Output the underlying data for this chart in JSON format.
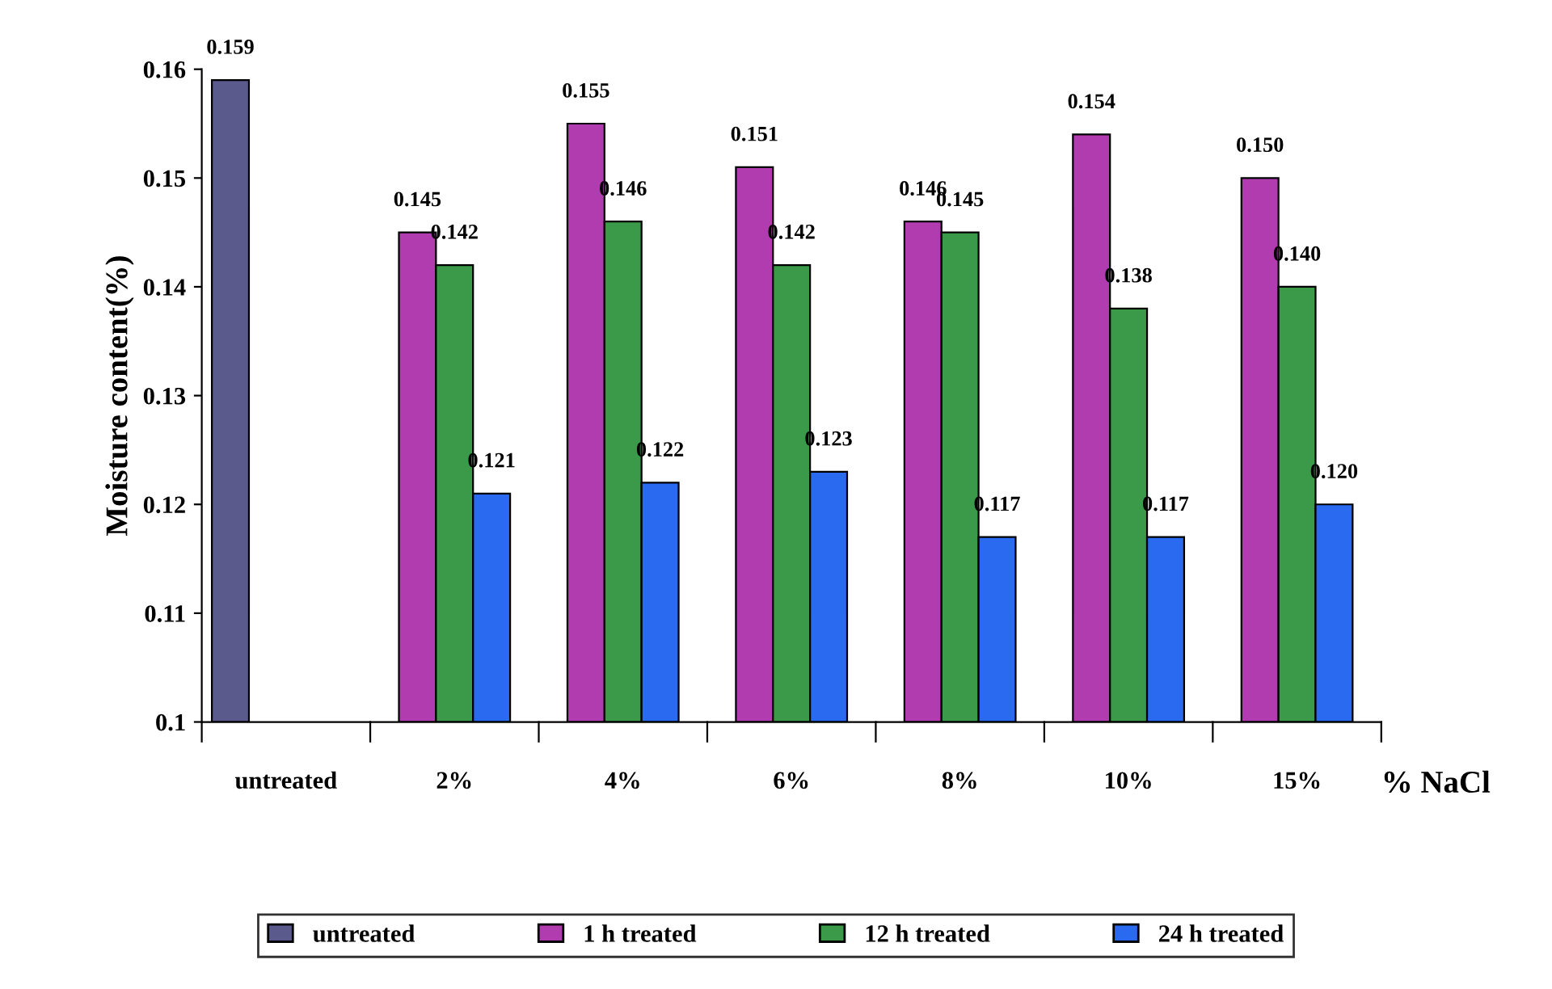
{
  "chart_data": {
    "type": "bar",
    "xlabel": "% NaCl",
    "ylabel": "Moisture content(%)",
    "categories": [
      "untreated",
      "2%",
      "4%",
      "6%",
      "8%",
      "10%",
      "15%"
    ],
    "series": [
      {
        "name": "untreated",
        "color": "#5a5a8c",
        "values": [
          0.159,
          null,
          null,
          null,
          null,
          null,
          null
        ],
        "value_labels": [
          "0.159",
          null,
          null,
          null,
          null,
          null,
          null
        ]
      },
      {
        "name": "1 h treated",
        "color": "#b03cb0",
        "values": [
          null,
          0.145,
          0.155,
          0.151,
          0.146,
          0.154,
          0.15
        ],
        "value_labels": [
          null,
          "0.145",
          "0.155",
          "0.151",
          "0.146",
          "0.154",
          "0.150"
        ]
      },
      {
        "name": "12 h treated",
        "color": "#3a9a4a",
        "values": [
          null,
          0.142,
          0.146,
          0.142,
          0.145,
          0.138,
          0.14
        ],
        "value_labels": [
          null,
          "0.142",
          "0.146",
          "0.142",
          "0.145",
          "0.138",
          "0.140"
        ]
      },
      {
        "name": "24 h treated",
        "color": "#2a6af0",
        "values": [
          null,
          0.121,
          0.122,
          0.123,
          0.117,
          0.117,
          0.12
        ],
        "value_labels": [
          null,
          "0.121",
          "0.122",
          "0.123",
          "0.117",
          "0.117",
          "0.120"
        ]
      }
    ],
    "ylim": [
      0.1,
      0.16
    ],
    "yticks": [
      {
        "value": 0.1,
        "label": "0.1"
      },
      0.11,
      0.12,
      0.13,
      0.14,
      0.15,
      0.16
    ],
    "grid": false,
    "legend": "bottom"
  }
}
